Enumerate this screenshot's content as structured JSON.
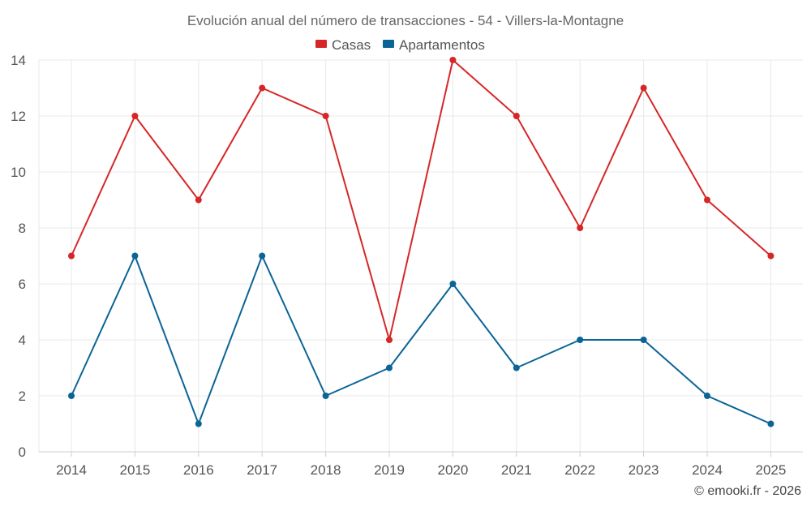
{
  "chart_data": {
    "type": "line",
    "title": "Evolución anual del número de transacciones - 54 - Villers-la-Montagne",
    "categories": [
      "2014",
      "2015",
      "2016",
      "2017",
      "2018",
      "2019",
      "2020",
      "2021",
      "2022",
      "2023",
      "2024",
      "2025"
    ],
    "series": [
      {
        "name": "Casas",
        "color": "#d62728",
        "values": [
          7,
          12,
          9,
          13,
          12,
          4,
          14,
          12,
          8,
          13,
          9,
          7
        ]
      },
      {
        "name": "Apartamentos",
        "color": "#0a6496",
        "values": [
          2,
          7,
          1,
          7,
          2,
          3,
          6,
          3,
          4,
          4,
          2,
          1
        ]
      }
    ],
    "ylim": [
      0,
      14
    ],
    "yticks": [
      0,
      2,
      4,
      6,
      8,
      10,
      12,
      14
    ],
    "grid": true,
    "legend_position": "top-center"
  },
  "credit": "© emooki.fr - 2026"
}
